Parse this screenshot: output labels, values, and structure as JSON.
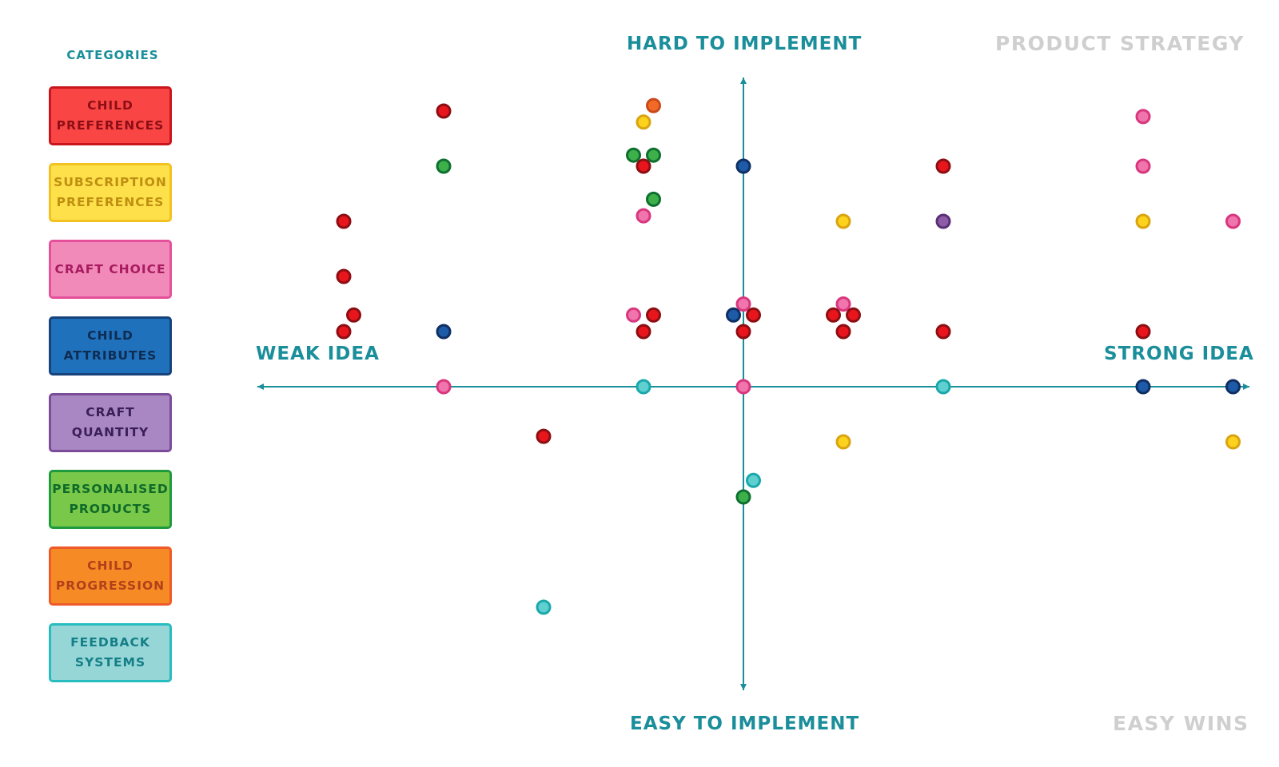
{
  "legend": {
    "heading": "CATEGORIES",
    "items": [
      {
        "label": "CHILD\nPREFERENCES",
        "key": "child-preferences",
        "fill": "#f94645",
        "border": "#c8161c",
        "text": "#8e0e16"
      },
      {
        "label": "SUBSCRIPTION\nPREFERENCES",
        "key": "subscription-preferences",
        "fill": "#fde04a",
        "border": "#f2c222",
        "text": "#bf8f12"
      },
      {
        "label": "CRAFT CHOICE",
        "key": "craft-choice",
        "fill": "#f28ab9",
        "border": "#e5509b",
        "text": "#a81c60"
      },
      {
        "label": "CHILD\nATTRIBUTES",
        "key": "child-attributes",
        "fill": "#1f71bc",
        "border": "#17427a",
        "text": "#0f2c52"
      },
      {
        "label": "CRAFT\nQUANTITY",
        "key": "craft-quantity",
        "fill": "#a887c2",
        "border": "#7a4c9a",
        "text": "#3c1e56"
      },
      {
        "label": "PERSONALISED\nPRODUCTS",
        "key": "personalised-products",
        "fill": "#7ac84a",
        "border": "#1f9a3c",
        "text": "#0f6b28"
      },
      {
        "label": "CHILD\nPROGRESSION",
        "key": "child-progression",
        "fill": "#f68b25",
        "border": "#ee5a2a",
        "text": "#b2401a"
      },
      {
        "label": "FEEDBACK\nSYSTEMS",
        "key": "feedback-systems",
        "fill": "#96d6d7",
        "border": "#27bcbf",
        "text": "#147f86"
      }
    ]
  },
  "axes": {
    "top": "HARD TO IMPLEMENT",
    "bottom": "EASY TO IMPLEMENT",
    "left": "WEAK IDEA",
    "right": "STRONG IDEA"
  },
  "quadrants": {
    "top_right": "PRODUCT STRATEGY",
    "bottom_right": "EASY WINS"
  },
  "colors": {
    "axis": "#1a8e9a",
    "child-preferences": {
      "fill": "#e8151d",
      "stroke": "#8c0e12"
    },
    "subscription-preferences": {
      "fill": "#fcd21c",
      "stroke": "#d9a411"
    },
    "craft-choice": {
      "fill": "#f075ac",
      "stroke": "#d9367e"
    },
    "child-attributes": {
      "fill": "#1d5aa7",
      "stroke": "#0f2f63"
    },
    "craft-quantity": {
      "fill": "#8d5ca6",
      "stroke": "#5a2f76"
    },
    "personalised-products": {
      "fill": "#3db04a",
      "stroke": "#0e7030"
    },
    "child-progression": {
      "fill": "#f26a27",
      "stroke": "#c84a1b"
    },
    "feedback-systems": {
      "fill": "#5fcfd0",
      "stroke": "#1aa8ab"
    }
  },
  "chart_data": {
    "type": "scatter",
    "xlabel_left": "WEAK IDEA",
    "xlabel_right": "STRONG IDEA",
    "ylabel_top": "HARD TO IMPLEMENT",
    "ylabel_bottom": "EASY TO IMPLEMENT",
    "xlim": [
      -5,
      5
    ],
    "ylim": [
      -6,
      6
    ],
    "grid": false,
    "legend": "left",
    "points": [
      {
        "category": "child-preferences",
        "x": -3.0,
        "y": 5.0
      },
      {
        "category": "child-progression",
        "x": -0.9,
        "y": 5.1
      },
      {
        "category": "subscription-preferences",
        "x": -1.0,
        "y": 4.8
      },
      {
        "category": "craft-choice",
        "x": 4.0,
        "y": 4.9
      },
      {
        "category": "personalised-products",
        "x": -3.0,
        "y": 4.0
      },
      {
        "category": "personalised-products",
        "x": -1.1,
        "y": 4.2
      },
      {
        "category": "personalised-products",
        "x": -0.9,
        "y": 4.2
      },
      {
        "category": "child-preferences",
        "x": -1.0,
        "y": 4.0
      },
      {
        "category": "child-attributes",
        "x": 0.0,
        "y": 4.0
      },
      {
        "category": "child-preferences",
        "x": 2.0,
        "y": 4.0
      },
      {
        "category": "craft-choice",
        "x": 4.0,
        "y": 4.0
      },
      {
        "category": "personalised-products",
        "x": -0.9,
        "y": 3.4
      },
      {
        "category": "craft-choice",
        "x": -1.0,
        "y": 3.1
      },
      {
        "category": "child-preferences",
        "x": -4.0,
        "y": 3.0
      },
      {
        "category": "subscription-preferences",
        "x": 1.0,
        "y": 3.0
      },
      {
        "category": "craft-quantity",
        "x": 2.0,
        "y": 3.0
      },
      {
        "category": "subscription-preferences",
        "x": 4.0,
        "y": 3.0
      },
      {
        "category": "craft-choice",
        "x": 4.9,
        "y": 3.0
      },
      {
        "category": "child-preferences",
        "x": -4.0,
        "y": 2.0
      },
      {
        "category": "child-preferences",
        "x": -3.9,
        "y": 1.3
      },
      {
        "category": "child-preferences",
        "x": -4.0,
        "y": 1.0
      },
      {
        "category": "child-attributes",
        "x": -3.0,
        "y": 1.0
      },
      {
        "category": "craft-choice",
        "x": -1.1,
        "y": 1.3
      },
      {
        "category": "child-preferences",
        "x": -0.9,
        "y": 1.3
      },
      {
        "category": "child-preferences",
        "x": -1.0,
        "y": 1.0
      },
      {
        "category": "craft-choice",
        "x": 0.0,
        "y": 1.5
      },
      {
        "category": "child-attributes",
        "x": -0.1,
        "y": 1.3
      },
      {
        "category": "child-preferences",
        "x": 0.1,
        "y": 1.3
      },
      {
        "category": "child-preferences",
        "x": 0.0,
        "y": 1.0
      },
      {
        "category": "craft-choice",
        "x": 1.0,
        "y": 1.5
      },
      {
        "category": "child-preferences",
        "x": 0.9,
        "y": 1.3
      },
      {
        "category": "child-preferences",
        "x": 1.1,
        "y": 1.3
      },
      {
        "category": "child-preferences",
        "x": 1.0,
        "y": 1.0
      },
      {
        "category": "child-preferences",
        "x": 2.0,
        "y": 1.0
      },
      {
        "category": "child-preferences",
        "x": 4.0,
        "y": 1.0
      },
      {
        "category": "craft-choice",
        "x": -3.0,
        "y": 0.0
      },
      {
        "category": "feedback-systems",
        "x": -1.0,
        "y": 0.0
      },
      {
        "category": "craft-choice",
        "x": 0.0,
        "y": 0.0
      },
      {
        "category": "feedback-systems",
        "x": 2.0,
        "y": 0.0
      },
      {
        "category": "child-attributes",
        "x": 4.0,
        "y": 0.0
      },
      {
        "category": "child-attributes",
        "x": 4.9,
        "y": 0.0
      },
      {
        "category": "child-preferences",
        "x": -2.0,
        "y": -0.9
      },
      {
        "category": "subscription-preferences",
        "x": 1.0,
        "y": -1.0
      },
      {
        "category": "subscription-preferences",
        "x": 4.9,
        "y": -1.0
      },
      {
        "category": "feedback-systems",
        "x": 0.1,
        "y": -1.7
      },
      {
        "category": "personalised-products",
        "x": 0.0,
        "y": -2.0
      },
      {
        "category": "feedback-systems",
        "x": -2.0,
        "y": -4.0
      }
    ]
  }
}
